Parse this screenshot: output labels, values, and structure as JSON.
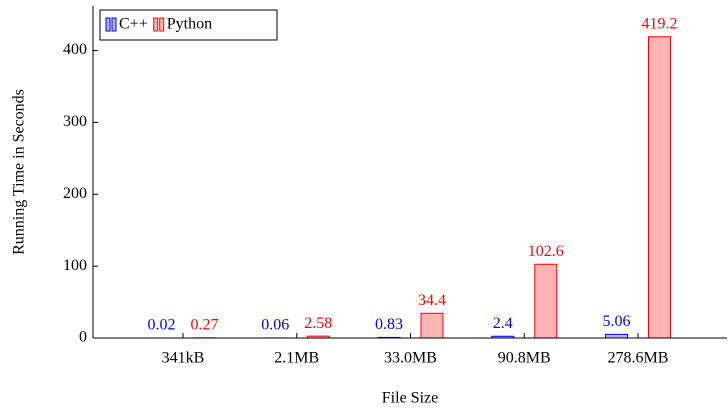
{
  "chart_data": {
    "type": "bar",
    "xlabel": "File Size",
    "ylabel": "Running Time in Seconds",
    "categories": [
      "341kB",
      "2.1MB",
      "33.0MB",
      "90.8MB",
      "278.6MB"
    ],
    "series": [
      {
        "name": "C++",
        "color": "#0000ff",
        "values": [
          0.02,
          0.06,
          0.83,
          2.4,
          5.06
        ]
      },
      {
        "name": "Python",
        "color": "#ff0000",
        "values": [
          0.27,
          2.58,
          34.4,
          102.6,
          419.2
        ]
      }
    ],
    "ylim": [
      0,
      462
    ],
    "yticks": [
      0,
      100,
      200,
      300,
      400
    ],
    "legend": "upper left"
  }
}
